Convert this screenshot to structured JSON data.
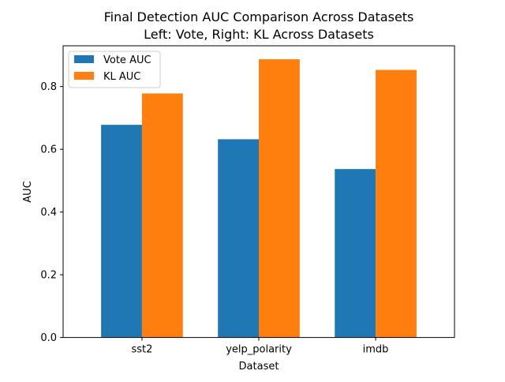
{
  "chart_data": {
    "type": "bar",
    "title": "Final Detection AUC Comparison Across Datasets",
    "subtitle": "Left: Vote, Right: KL Across Datasets",
    "xlabel": "Dataset",
    "ylabel": "AUC",
    "categories": [
      "sst2",
      "yelp_polarity",
      "imdb"
    ],
    "series": [
      {
        "name": "Vote AUC",
        "color": "#1f77b4",
        "values": [
          0.678,
          0.632,
          0.537
        ]
      },
      {
        "name": "KL AUC",
        "color": "#ff7f0e",
        "values": [
          0.778,
          0.887,
          0.853
        ]
      }
    ],
    "ylim": [
      0,
      0.93
    ],
    "yticks": [
      0.0,
      0.2,
      0.4,
      0.6,
      0.8
    ],
    "ytick_labels": [
      "0.0",
      "0.2",
      "0.4",
      "0.6",
      "0.8"
    ],
    "grid": false,
    "legend_position": "top-left"
  }
}
